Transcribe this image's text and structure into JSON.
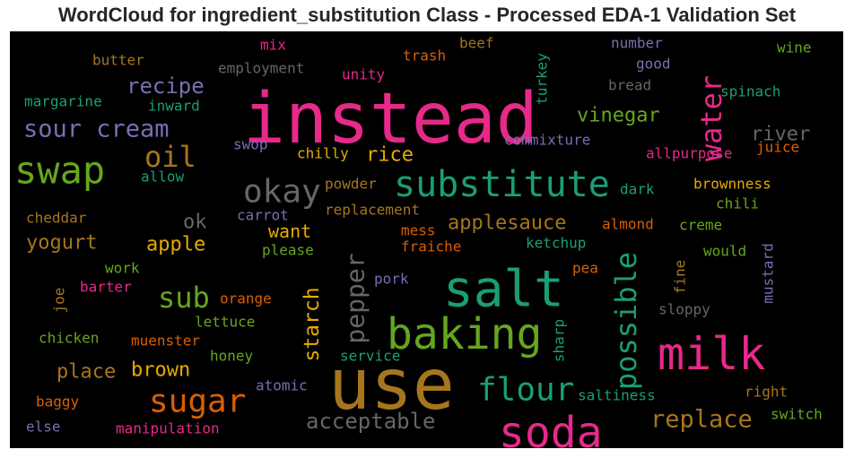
{
  "title": "WordCloud for ingredient_substitution Class - Processed EDA-1 Validation Set",
  "chart_data": {
    "type": "wordcloud",
    "background": "#000000",
    "words": [
      {
        "text": "instead",
        "color": "#e7298a"
      },
      {
        "text": "use",
        "color": "#a6761d"
      },
      {
        "text": "salt",
        "color": "#1b9e77"
      },
      {
        "text": "milk",
        "color": "#e7298a"
      },
      {
        "text": "baking",
        "color": "#66a61e"
      },
      {
        "text": "soda",
        "color": "#e7298a"
      },
      {
        "text": "swap",
        "color": "#66a61e"
      },
      {
        "text": "substitute",
        "color": "#1b9e77"
      },
      {
        "text": "sugar",
        "color": "#d95f02"
      },
      {
        "text": "possible",
        "color": "#1b9e77"
      },
      {
        "text": "flour",
        "color": "#1b9e77"
      },
      {
        "text": "okay",
        "color": "#666666"
      },
      {
        "text": "water",
        "color": "#e7298a"
      },
      {
        "text": "oil",
        "color": "#a6761d"
      },
      {
        "text": "sub",
        "color": "#66a61e"
      },
      {
        "text": "pepper",
        "color": "#666666"
      },
      {
        "text": "replace",
        "color": "#a6761d"
      },
      {
        "text": "sour cream",
        "color": "#7570b3"
      },
      {
        "text": "acceptable",
        "color": "#666666"
      },
      {
        "text": "applesauce",
        "color": "#a6761d"
      },
      {
        "text": "starch",
        "color": "#e6ab02"
      },
      {
        "text": "recipe",
        "color": "#7570b3"
      },
      {
        "text": "vinegar",
        "color": "#66a61e"
      },
      {
        "text": "river",
        "color": "#666666"
      },
      {
        "text": "yogurt",
        "color": "#a6761d"
      },
      {
        "text": "place",
        "color": "#a6761d"
      },
      {
        "text": "brown",
        "color": "#e6ab02"
      },
      {
        "text": "apple",
        "color": "#e6ab02"
      },
      {
        "text": "rice",
        "color": "#e6ab02"
      },
      {
        "text": "ok",
        "color": "#666666"
      },
      {
        "text": "want",
        "color": "#e6ab02"
      },
      {
        "text": "butter",
        "color": "#a6761d"
      },
      {
        "text": "margarine",
        "color": "#1b9e77"
      },
      {
        "text": "employment",
        "color": "#666666"
      },
      {
        "text": "mix",
        "color": "#e7298a"
      },
      {
        "text": "unity",
        "color": "#e7298a"
      },
      {
        "text": "trash",
        "color": "#d95f02"
      },
      {
        "text": "beef",
        "color": "#a6761d"
      },
      {
        "text": "turkey",
        "color": "#1b9e77"
      },
      {
        "text": "number",
        "color": "#7570b3"
      },
      {
        "text": "good",
        "color": "#7570b3"
      },
      {
        "text": "wine",
        "color": "#66a61e"
      },
      {
        "text": "bread",
        "color": "#666666"
      },
      {
        "text": "spinach",
        "color": "#1b9e77"
      },
      {
        "text": "inward",
        "color": "#1b9e77"
      },
      {
        "text": "commixture",
        "color": "#7570b3"
      },
      {
        "text": "juice",
        "color": "#d95f02"
      },
      {
        "text": "allpurpose",
        "color": "#e7298a"
      },
      {
        "text": "swop",
        "color": "#7570b3"
      },
      {
        "text": "chilly",
        "color": "#e6ab02"
      },
      {
        "text": "allow",
        "color": "#1b9e77"
      },
      {
        "text": "powder",
        "color": "#a6761d"
      },
      {
        "text": "dark",
        "color": "#1b9e77"
      },
      {
        "text": "brownness",
        "color": "#e6ab02"
      },
      {
        "text": "chili",
        "color": "#66a61e"
      },
      {
        "text": "cheddar",
        "color": "#a6761d"
      },
      {
        "text": "carrot",
        "color": "#7570b3"
      },
      {
        "text": "replacement",
        "color": "#a6761d"
      },
      {
        "text": "almond",
        "color": "#d95f02"
      },
      {
        "text": "creme",
        "color": "#66a61e"
      },
      {
        "text": "mess",
        "color": "#d95f02"
      },
      {
        "text": "please",
        "color": "#66a61e"
      },
      {
        "text": "fraiche",
        "color": "#d95f02"
      },
      {
        "text": "ketchup",
        "color": "#1b9e77"
      },
      {
        "text": "would",
        "color": "#66a61e"
      },
      {
        "text": "mustard",
        "color": "#7570b3"
      },
      {
        "text": "work",
        "color": "#66a61e"
      },
      {
        "text": "pea",
        "color": "#d95f02"
      },
      {
        "text": "fine",
        "color": "#a6761d"
      },
      {
        "text": "joe",
        "color": "#a6761d"
      },
      {
        "text": "barter",
        "color": "#e7298a"
      },
      {
        "text": "pork",
        "color": "#7570b3"
      },
      {
        "text": "orange",
        "color": "#d95f02"
      },
      {
        "text": "lettuce",
        "color": "#66a61e"
      },
      {
        "text": "sloppy",
        "color": "#666666"
      },
      {
        "text": "sharp",
        "color": "#1b9e77"
      },
      {
        "text": "chicken",
        "color": "#66a61e"
      },
      {
        "text": "muenster",
        "color": "#d95f02"
      },
      {
        "text": "service",
        "color": "#1b9e77"
      },
      {
        "text": "honey",
        "color": "#66a61e"
      },
      {
        "text": "atomic",
        "color": "#7570b3"
      },
      {
        "text": "right",
        "color": "#a6761d"
      },
      {
        "text": "saltiness",
        "color": "#1b9e77"
      },
      {
        "text": "switch",
        "color": "#66a61e"
      },
      {
        "text": "baggy",
        "color": "#d95f02"
      },
      {
        "text": "else",
        "color": "#7570b3"
      },
      {
        "text": "manipulation",
        "color": "#e7298a"
      }
    ]
  }
}
